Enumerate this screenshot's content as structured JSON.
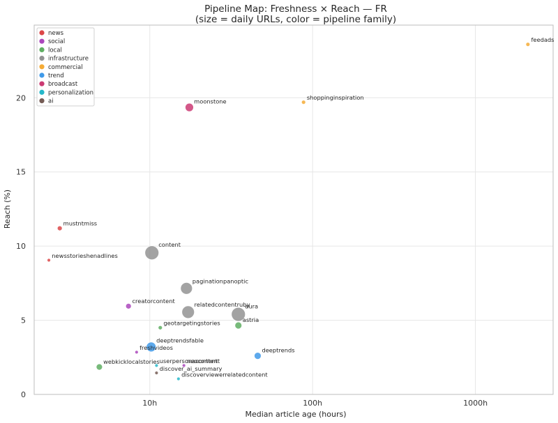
{
  "chart_data": {
    "type": "scatter",
    "title": "Pipeline Map: Freshness × Reach — FR",
    "subtitle": "(size = daily URLs, color = pipeline family)",
    "xlabel": "Median article age (hours)",
    "ylabel": "Reach (%)",
    "x_scale": "log",
    "xlim": [
      1.95,
      3000
    ],
    "ylim": [
      0,
      24.9
    ],
    "grid": true,
    "legend_position": "top-left",
    "x_ticks": [
      {
        "value": 10,
        "label": "10h"
      },
      {
        "value": 100,
        "label": "100h"
      },
      {
        "value": 1000,
        "label": "1000h"
      }
    ],
    "y_ticks": [
      {
        "value": 0,
        "label": "0"
      },
      {
        "value": 5,
        "label": "5"
      },
      {
        "value": 10,
        "label": "10"
      },
      {
        "value": 15,
        "label": "15"
      },
      {
        "value": 20,
        "label": "20"
      }
    ],
    "families": [
      {
        "name": "news",
        "color": "#d62728"
      },
      {
        "name": "social",
        "color": "#9c27b0"
      },
      {
        "name": "local",
        "color": "#43a047"
      },
      {
        "name": "infrastructure",
        "color": "#7f7f7f"
      },
      {
        "name": "commercial",
        "color": "#f39c12"
      },
      {
        "name": "trend",
        "color": "#1e88e5"
      },
      {
        "name": "broadcast",
        "color": "#c2185b"
      },
      {
        "name": "personalization",
        "color": "#00acc1"
      },
      {
        "name": "ai",
        "color": "#5d4037"
      }
    ],
    "points": [
      {
        "label": "feedads",
        "family": "commercial",
        "x": 2100,
        "y": 23.6,
        "size": 3
      },
      {
        "label": "shoppinginspiration",
        "family": "commercial",
        "x": 88,
        "y": 19.7,
        "size": 3
      },
      {
        "label": "moonstone",
        "family": "broadcast",
        "x": 17.5,
        "y": 19.35,
        "size": 6
      },
      {
        "label": "mustntmiss",
        "family": "news",
        "x": 2.8,
        "y": 11.2,
        "size": 3.5
      },
      {
        "label": "newsstorieshenadlines",
        "family": "news",
        "x": 2.4,
        "y": 9.05,
        "size": 2.5
      },
      {
        "label": "content",
        "family": "infrastructure",
        "x": 10.3,
        "y": 9.55,
        "size": 10
      },
      {
        "label": "paginationpanoptic",
        "family": "infrastructure",
        "x": 16.8,
        "y": 7.15,
        "size": 8.5
      },
      {
        "label": "creatorcontent",
        "family": "social",
        "x": 7.4,
        "y": 5.95,
        "size": 4
      },
      {
        "label": "relatedcontentruby",
        "family": "infrastructure",
        "x": 17.2,
        "y": 5.55,
        "size": 9
      },
      {
        "label": "aura",
        "family": "infrastructure",
        "x": 35,
        "y": 5.4,
        "size": 10
      },
      {
        "label": "astria",
        "family": "local",
        "x": 35,
        "y": 4.65,
        "size": 5
      },
      {
        "label": "geotargetingstories",
        "family": "local",
        "x": 11.6,
        "y": 4.5,
        "size": 3
      },
      {
        "label": "deeptrendsfable",
        "family": "trend",
        "x": 10.2,
        "y": 3.2,
        "size": 7
      },
      {
        "label": "freshvideos",
        "family": "social",
        "x": 8.3,
        "y": 2.85,
        "size": 2.5
      },
      {
        "label": "deeptrends",
        "family": "trend",
        "x": 46,
        "y": 2.6,
        "size": 5
      },
      {
        "label": "webkicklocalstories",
        "family": "local",
        "x": 4.9,
        "y": 1.85,
        "size": 4.5
      },
      {
        "label": "userpersonacontent",
        "family": "personalization",
        "x": 11,
        "y": 1.95,
        "size": 2.5
      },
      {
        "label": "neocontent",
        "family": "social",
        "x": 16.2,
        "y": 1.95,
        "size": 2.5
      },
      {
        "label": "discover_ai_summary",
        "family": "ai",
        "x": 11,
        "y": 1.45,
        "size": 2.5
      },
      {
        "label": "discoverviewerrelatedcontent",
        "family": "personalization",
        "x": 15,
        "y": 1.05,
        "size": 2.5
      }
    ]
  }
}
